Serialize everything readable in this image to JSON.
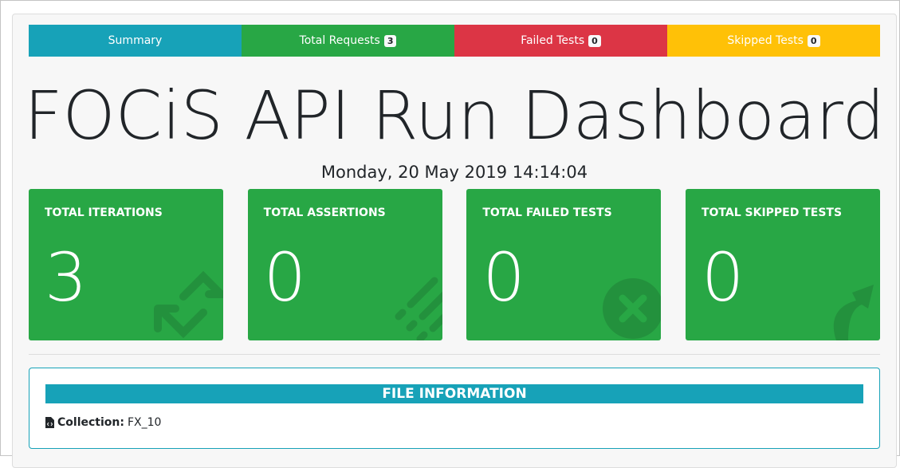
{
  "tabs": [
    {
      "label": "Summary",
      "color": "#17a2b8"
    },
    {
      "label": "Total Requests",
      "badge": "3",
      "color": "#28a745"
    },
    {
      "label": "Failed Tests",
      "badge": "0",
      "color": "#dc3545"
    },
    {
      "label": "Skipped Tests",
      "badge": "0",
      "color": "#ffc107"
    }
  ],
  "title": "FOCiS API Run Dashboard",
  "date": "Monday, 20 May 2019 14:14:04",
  "cards": [
    {
      "label": "TOTAL ITERATIONS",
      "value": "3",
      "icon": "sync-icon"
    },
    {
      "label": "TOTAL ASSERTIONS",
      "value": "0",
      "icon": "list-icon"
    },
    {
      "label": "TOTAL FAILED TESTS",
      "value": "0",
      "icon": "times-circle-icon"
    },
    {
      "label": "TOTAL SKIPPED TESTS",
      "value": "0",
      "icon": "share-arrow-icon"
    }
  ],
  "file_info": {
    "heading": "FILE INFORMATION",
    "collection_label": "Collection:",
    "collection_value": "FX_10",
    "icon": "file-code-icon"
  }
}
